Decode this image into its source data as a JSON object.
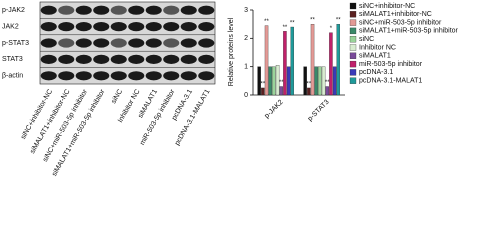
{
  "blot": {
    "rows": [
      "p-JAK2",
      "JAK2",
      "p-STAT3",
      "STAT3",
      "β-actin"
    ],
    "lanes": [
      "siNC+inhibitor-NC",
      "siMALAT1+inhibitor-NC",
      "siNC+miR-503-5p inhibitor",
      "siMALAT1+miR-503-5p inhibitor",
      "siNC",
      "Inhibitor NC",
      "siMALAT1",
      "miR-503-5p inhibitor",
      "pcDNA-3.1",
      "pcDNA-3.1-MALAT1"
    ]
  },
  "chart_data": {
    "type": "bar",
    "ylabel": "Relative proteins level",
    "categories": [
      "p-JAK2",
      "p-STAT3"
    ],
    "ylim": [
      0,
      3
    ],
    "yticks": [
      0,
      1,
      2,
      3
    ],
    "series": [
      {
        "name": "siNC+inhibitor-NC",
        "color": "#111111",
        "values": [
          1.0,
          1.0
        ],
        "marks": [
          null,
          null
        ]
      },
      {
        "name": "siMALAT1+inhibitor-NC",
        "color": "#5a2020",
        "values": [
          0.25,
          0.25
        ],
        "marks": [
          "**",
          "**"
        ]
      },
      {
        "name": "siNC+miR-503-5p inhibitor",
        "color": "#e39a96",
        "values": [
          2.45,
          2.5
        ],
        "marks": [
          "**",
          "**"
        ]
      },
      {
        "name": "siMALAT1+miR-503-5p inhibitor",
        "color": "#3a8a6a",
        "values": [
          1.0,
          1.0
        ],
        "marks": [
          null,
          null
        ]
      },
      {
        "name": "siNC",
        "color": "#9ad49a",
        "values": [
          1.0,
          1.0
        ],
        "marks": [
          null,
          null
        ]
      },
      {
        "name": "Inhibitor NC",
        "color": "#d8ecd0",
        "values": [
          1.05,
          1.0
        ],
        "marks": [
          null,
          null
        ]
      },
      {
        "name": "siMALAT1",
        "color": "#7a4a9a",
        "values": [
          0.3,
          0.3
        ],
        "marks": [
          "**",
          "**"
        ]
      },
      {
        "name": "miR-503-5p inhibitor",
        "color": "#c0206a",
        "values": [
          2.25,
          2.2
        ],
        "marks": [
          "**",
          "*"
        ]
      },
      {
        "name": "pcDNA-3.1",
        "color": "#3a3ab8",
        "values": [
          1.0,
          1.0
        ],
        "marks": [
          null,
          null
        ]
      },
      {
        "name": "pcDNA-3.1-MALAT1",
        "color": "#1f9a9a",
        "values": [
          2.4,
          2.5
        ],
        "marks": [
          "**",
          "**"
        ]
      }
    ]
  }
}
